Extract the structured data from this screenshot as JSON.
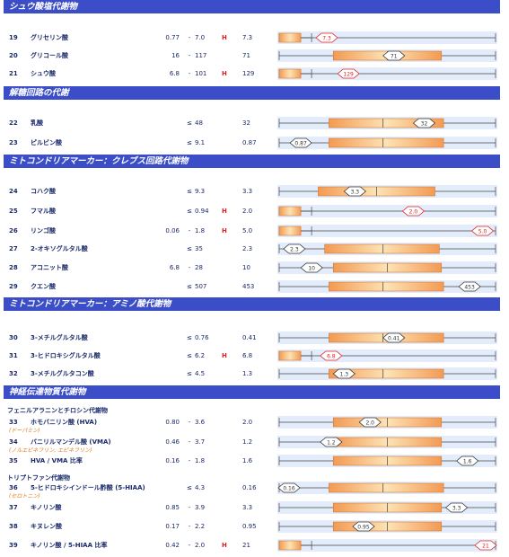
{
  "sections": [
    {
      "title": "シュウ酸塩代謝物"
    },
    {
      "title": "解糖回路の代謝"
    },
    {
      "title": "ミトコンドリアマーカー：クレブス回路代謝物"
    },
    {
      "title": "ミトコンドリアマーカー：アミノ酸代謝物"
    },
    {
      "title": "神経伝達物質代謝物"
    }
  ],
  "subsections": [
    {
      "title": "フェニルアラニンとチロシン代謝物"
    },
    {
      "title": "トリプトファン代謝物"
    }
  ],
  "rows": [
    {
      "num": "19",
      "name": "グリセリン酸",
      "low": "0.77",
      "sep": "-",
      "high": "7.0",
      "flag": "H",
      "value": "7.3",
      "sub": "",
      "bar": {
        "box_from": 0.0,
        "box_to": 0.1,
        "median": null,
        "marker": 0.22,
        "high": true
      }
    },
    {
      "num": "20",
      "name": "グリコール酸",
      "low": "16",
      "sep": "-",
      "high": "117",
      "flag": "",
      "value": "71",
      "sub": "",
      "bar": {
        "box_from": 0.25,
        "box_to": 0.75,
        "median": 0.5,
        "marker": 0.53,
        "high": false
      }
    },
    {
      "num": "21",
      "name": "シュウ酸",
      "low": "6.8",
      "sep": "-",
      "high": "101",
      "flag": "H",
      "value": "129",
      "sub": "",
      "bar": {
        "box_from": 0.0,
        "box_to": 0.1,
        "median": null,
        "marker": 0.32,
        "high": true
      }
    },
    {
      "num": "22",
      "name": "乳酸",
      "low": "",
      "sep": "≤",
      "high": "48",
      "flag": "",
      "value": "32",
      "sub": "",
      "bar": {
        "box_from": 0.23,
        "box_to": 0.76,
        "median": 0.48,
        "marker": 0.67,
        "high": false
      }
    },
    {
      "num": "23",
      "name": "ピルビン酸",
      "low": "",
      "sep": "≤",
      "high": "9.1",
      "flag": "",
      "value": "0.87",
      "sub": "",
      "bar": {
        "box_from": 0.23,
        "box_to": 0.76,
        "median": 0.48,
        "marker": 0.1,
        "high": false
      }
    },
    {
      "num": "24",
      "name": "コハク酸",
      "low": "",
      "sep": "≤",
      "high": "9.3",
      "flag": "",
      "value": "3.3",
      "sub": "",
      "bar": {
        "box_from": 0.18,
        "box_to": 0.72,
        "median": 0.45,
        "marker": 0.35,
        "high": false
      }
    },
    {
      "num": "25",
      "name": "フマル酸",
      "low": "",
      "sep": "≤",
      "high": "0.94",
      "flag": "H",
      "value": "2.0",
      "sub": "",
      "bar": {
        "box_from": 0.0,
        "box_to": 0.1,
        "median": null,
        "marker": 0.62,
        "high": true
      }
    },
    {
      "num": "26",
      "name": "リンゴ酸",
      "low": "0.06",
      "sep": "-",
      "high": "1.8",
      "flag": "H",
      "value": "5.0",
      "sub": "",
      "bar": {
        "box_from": 0.0,
        "box_to": 0.1,
        "median": null,
        "marker": 0.94,
        "high": true
      }
    },
    {
      "num": "27",
      "name": "2-オキソグルタル酸",
      "low": "",
      "sep": "≤",
      "high": "35",
      "flag": "",
      "value": "2.3",
      "sub": "",
      "bar": {
        "box_from": 0.21,
        "box_to": 0.74,
        "median": 0.48,
        "marker": 0.07,
        "high": false
      }
    },
    {
      "num": "28",
      "name": "アコニット酸",
      "low": "6.8",
      "sep": "-",
      "high": "28",
      "flag": "",
      "value": "10",
      "sub": "",
      "bar": {
        "box_from": 0.25,
        "box_to": 0.75,
        "median": 0.5,
        "marker": 0.15,
        "high": false
      }
    },
    {
      "num": "29",
      "name": "クエン酸",
      "low": "",
      "sep": "≤",
      "high": "507",
      "flag": "",
      "value": "453",
      "sub": "",
      "bar": {
        "box_from": 0.23,
        "box_to": 0.76,
        "median": 0.48,
        "marker": 0.88,
        "high": false
      }
    },
    {
      "num": "30",
      "name": "3-メチルグルタル酸",
      "low": "",
      "sep": "≤",
      "high": "0.76",
      "flag": "",
      "value": "0.41",
      "sub": "",
      "bar": {
        "box_from": 0.23,
        "box_to": 0.76,
        "median": 0.48,
        "marker": 0.53,
        "high": false
      }
    },
    {
      "num": "31",
      "name": "3-ヒドロキシグルタル酸",
      "low": "",
      "sep": "≤",
      "high": "6.2",
      "flag": "H",
      "value": "6.8",
      "sub": "",
      "bar": {
        "box_from": 0.0,
        "box_to": 0.1,
        "median": null,
        "marker": 0.24,
        "high": true
      }
    },
    {
      "num": "32",
      "name": "3-メチルグルタコン酸",
      "low": "",
      "sep": "≤",
      "high": "4.5",
      "flag": "",
      "value": "1.3",
      "sub": "",
      "bar": {
        "box_from": 0.23,
        "box_to": 0.76,
        "median": 0.48,
        "marker": 0.3,
        "high": false
      }
    },
    {
      "num": "33",
      "name": "ホモバニリン酸 (HVA)",
      "low": "0.80",
      "sep": "-",
      "high": "3.6",
      "flag": "",
      "value": "2.0",
      "sub": "(ドーパミン)",
      "bar": {
        "box_from": 0.25,
        "box_to": 0.75,
        "median": 0.5,
        "marker": 0.42,
        "high": false
      }
    },
    {
      "num": "34",
      "name": "バニリルマンデル酸 (VMA)",
      "low": "0.46",
      "sep": "-",
      "high": "3.7",
      "flag": "",
      "value": "1.2",
      "sub": "(ノルエピネフリン, エピネフリン)",
      "bar": {
        "box_from": 0.25,
        "box_to": 0.75,
        "median": 0.5,
        "marker": 0.24,
        "high": false
      }
    },
    {
      "num": "35",
      "name": "HVA / VMA 比率",
      "low": "0.16",
      "sep": "-",
      "high": "1.8",
      "flag": "",
      "value": "1.6",
      "sub": "",
      "bar": {
        "box_from": 0.25,
        "box_to": 0.75,
        "median": 0.5,
        "marker": 0.87,
        "high": false
      }
    },
    {
      "num": "36",
      "name": "5-ヒドロキシインドール酢酸 (5-HIAA)",
      "low": "",
      "sep": "≤",
      "high": "4.3",
      "flag": "",
      "value": "0.16",
      "sub": "(セロトニン)",
      "bar": {
        "box_from": 0.23,
        "box_to": 0.76,
        "median": 0.48,
        "marker": 0.04,
        "high": false
      }
    },
    {
      "num": "37",
      "name": "キノリン酸",
      "low": "0.85",
      "sep": "-",
      "high": "3.9",
      "flag": "",
      "value": "3.3",
      "sub": "",
      "bar": {
        "box_from": 0.25,
        "box_to": 0.75,
        "median": 0.5,
        "marker": 0.82,
        "high": false
      }
    },
    {
      "num": "38",
      "name": "キヌレン酸",
      "low": "0.17",
      "sep": "-",
      "high": "2.2",
      "flag": "",
      "value": "0.95",
      "sub": "",
      "bar": {
        "box_from": 0.25,
        "box_to": 0.75,
        "median": 0.5,
        "marker": 0.39,
        "high": false
      }
    },
    {
      "num": "39",
      "name": "キノリン酸 / 5-HIAA 比率",
      "low": "0.42",
      "sep": "-",
      "high": "2.0",
      "flag": "H",
      "value": "21",
      "sub": "",
      "bar": {
        "box_from": 0.0,
        "box_to": 0.1,
        "median": null,
        "marker": 0.97,
        "high": true
      }
    }
  ]
}
